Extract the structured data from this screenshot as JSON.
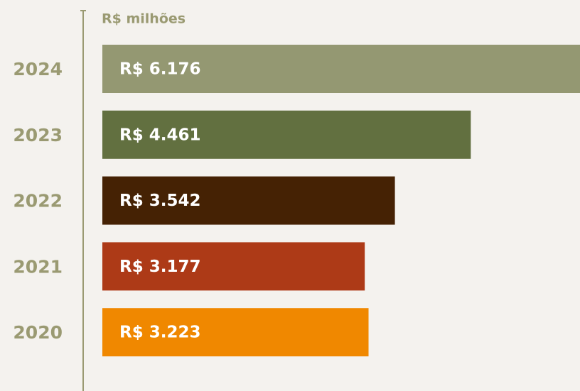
{
  "chart_data": {
    "type": "bar",
    "orientation": "horizontal",
    "x_axis_label": "R$ milhões",
    "categories": [
      "2024",
      "2023",
      "2022",
      "2021",
      "2020"
    ],
    "values": [
      6176,
      4461,
      3542,
      3177,
      3223
    ],
    "value_labels": [
      "R$ 6.176",
      "R$ 4.461",
      "R$ 3.542",
      "R$ 3.177",
      "R$ 3.223"
    ],
    "colors": [
      "#949872",
      "#627040",
      "#452204",
      "#ad3a17",
      "#f08800"
    ]
  }
}
